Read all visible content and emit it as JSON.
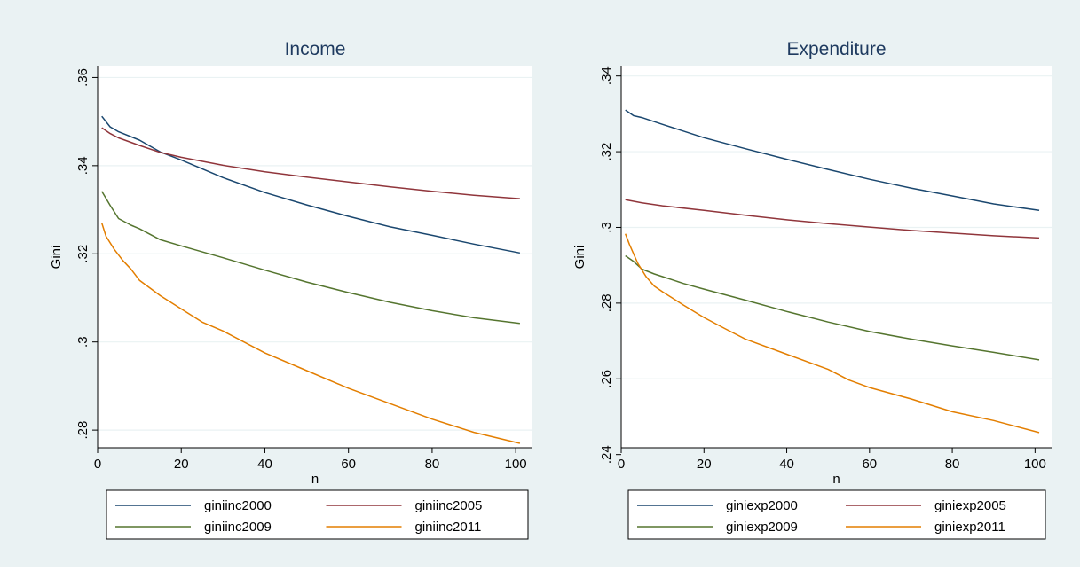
{
  "colors": {
    "background": "#eaf2f3",
    "plot_region": "#ffffff",
    "grid": "#eaf2f3",
    "series": [
      "#1a476f",
      "#90353b",
      "#55752f",
      "#e37e00"
    ]
  },
  "chart_data": [
    {
      "type": "line",
      "title": "Income",
      "xlabel": "n",
      "ylabel": "Gini",
      "xlim": [
        0,
        104
      ],
      "ylim": [
        0.276,
        0.3625
      ],
      "xticks": [
        0,
        20,
        40,
        60,
        80,
        100
      ],
      "xtick_labels": [
        "0",
        "20",
        "40",
        "60",
        "80",
        "100"
      ],
      "yticks": [
        0.28,
        0.3,
        0.32,
        0.34,
        0.36
      ],
      "ytick_labels": [
        ".28",
        ".3",
        ".32",
        ".34",
        ".36"
      ],
      "grid": true,
      "legend_position": "bottom",
      "series": [
        {
          "name": "giniinc2000",
          "x": [
            1,
            3,
            5,
            10,
            15,
            20,
            30,
            40,
            50,
            60,
            70,
            80,
            90,
            101
          ],
          "y": [
            0.3512,
            0.3488,
            0.3477,
            0.3458,
            0.3431,
            0.3413,
            0.3373,
            0.3339,
            0.3311,
            0.3285,
            0.3261,
            0.3242,
            0.3222,
            0.3202
          ]
        },
        {
          "name": "giniinc2005",
          "x": [
            1,
            3,
            5,
            10,
            15,
            20,
            30,
            40,
            50,
            60,
            70,
            80,
            90,
            101
          ],
          "y": [
            0.3486,
            0.3473,
            0.3463,
            0.3446,
            0.343,
            0.3419,
            0.3401,
            0.3386,
            0.3374,
            0.3363,
            0.3352,
            0.3342,
            0.3333,
            0.3325
          ]
        },
        {
          "name": "giniinc2009",
          "x": [
            1,
            3,
            5,
            8,
            10,
            15,
            20,
            30,
            40,
            50,
            60,
            70,
            80,
            90,
            101
          ],
          "y": [
            0.3342,
            0.331,
            0.328,
            0.3265,
            0.3257,
            0.3232,
            0.3218,
            0.3191,
            0.3163,
            0.3136,
            0.3112,
            0.309,
            0.3071,
            0.3055,
            0.3042
          ]
        },
        {
          "name": "giniinc2011",
          "x": [
            1,
            2,
            4,
            6,
            8,
            10,
            15,
            20,
            25,
            30,
            40,
            50,
            60,
            70,
            80,
            90,
            101
          ],
          "y": [
            0.327,
            0.324,
            0.321,
            0.3185,
            0.3165,
            0.314,
            0.3105,
            0.3075,
            0.3045,
            0.3025,
            0.2975,
            0.2935,
            0.2895,
            0.286,
            0.2825,
            0.2795,
            0.277
          ]
        }
      ]
    },
    {
      "type": "line",
      "title": "Expenditure",
      "xlabel": "n",
      "ylabel": "Gini",
      "xlim": [
        0,
        104
      ],
      "ylim": [
        0.2418,
        0.3425
      ],
      "xticks": [
        0,
        20,
        40,
        60,
        80,
        100
      ],
      "xtick_labels": [
        "0",
        "20",
        "40",
        "60",
        "80",
        "100"
      ],
      "yticks": [
        0.24,
        0.26,
        0.28,
        0.3,
        0.32,
        0.34
      ],
      "ytick_labels": [
        ".24",
        ".26",
        ".28",
        ".3",
        ".32",
        ".34"
      ],
      "grid": true,
      "legend_position": "bottom",
      "series": [
        {
          "name": "giniexp2000",
          "x": [
            1,
            3,
            5,
            10,
            20,
            30,
            40,
            50,
            60,
            70,
            80,
            90,
            101
          ],
          "y": [
            0.331,
            0.3295,
            0.329,
            0.3272,
            0.3237,
            0.3208,
            0.318,
            0.3153,
            0.3127,
            0.3104,
            0.3083,
            0.3062,
            0.3045
          ]
        },
        {
          "name": "giniexp2005",
          "x": [
            1,
            5,
            10,
            20,
            30,
            40,
            50,
            60,
            70,
            80,
            90,
            101
          ],
          "y": [
            0.3073,
            0.3065,
            0.3057,
            0.3045,
            0.3032,
            0.302,
            0.301,
            0.3001,
            0.2992,
            0.2985,
            0.2978,
            0.2972
          ]
        },
        {
          "name": "giniexp2009",
          "x": [
            1,
            3,
            5,
            8,
            10,
            15,
            20,
            30,
            40,
            50,
            60,
            70,
            80,
            90,
            101
          ],
          "y": [
            0.2925,
            0.291,
            0.289,
            0.2877,
            0.287,
            0.2852,
            0.2837,
            0.2808,
            0.2778,
            0.275,
            0.2725,
            0.2705,
            0.2687,
            0.267,
            0.265
          ]
        },
        {
          "name": "giniexp2011",
          "x": [
            1,
            2,
            4,
            6,
            8,
            10,
            15,
            20,
            25,
            30,
            40,
            50,
            55,
            60,
            70,
            80,
            90,
            101
          ],
          "y": [
            0.2983,
            0.2955,
            0.2905,
            0.287,
            0.2845,
            0.283,
            0.2795,
            0.2762,
            0.2733,
            0.2705,
            0.2665,
            0.2625,
            0.2597,
            0.2577,
            0.2547,
            0.2513,
            0.249,
            0.2458
          ]
        }
      ]
    }
  ]
}
